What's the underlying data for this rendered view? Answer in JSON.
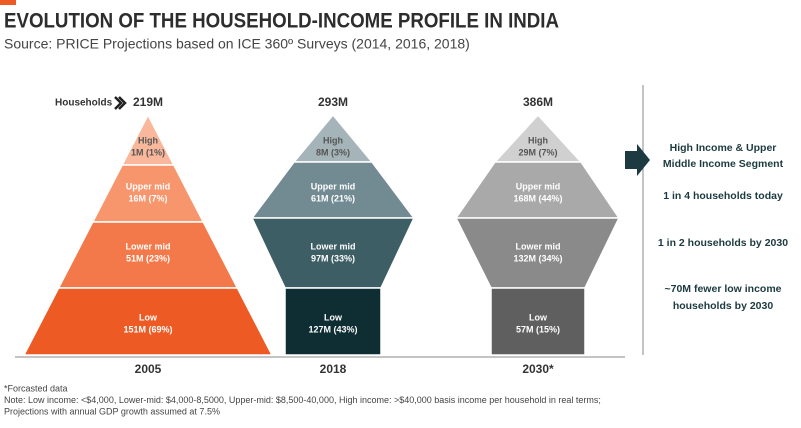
{
  "header": {
    "title": "EVOLUTION OF THE HOUSEHOLD-INCOME PROFILE IN INDIA",
    "source": "Source: PRICE Projections based on ICE 360º Surveys (2014, 2016, 2018)"
  },
  "households_label": "Households",
  "columns": [
    {
      "year": "2005",
      "total": "219M",
      "segments": [
        {
          "name": "High",
          "value": "1M (1%)"
        },
        {
          "name": "Upper mid",
          "value": "16M (7%)"
        },
        {
          "name": "Lower mid",
          "value": "51M (23%)"
        },
        {
          "name": "Low",
          "value": "151M (69%)"
        }
      ]
    },
    {
      "year": "2018",
      "total": "293M",
      "segments": [
        {
          "name": "High",
          "value": "8M (3%)"
        },
        {
          "name": "Upper mid",
          "value": "61M (21%)"
        },
        {
          "name": "Lower mid",
          "value": "97M (33%)"
        },
        {
          "name": "Low",
          "value": "127M (43%)"
        }
      ]
    },
    {
      "year": "2030*",
      "total": "386M",
      "segments": [
        {
          "name": "High",
          "value": "29M (7%)"
        },
        {
          "name": "Upper mid",
          "value": "168M (44%)"
        },
        {
          "name": "Lower mid",
          "value": "132M (34%)"
        },
        {
          "name": "Low",
          "value": "57M (15%)"
        }
      ]
    }
  ],
  "side_panel": {
    "heading": [
      "High Income & Upper",
      "Middle Income Segment"
    ],
    "facts": [
      [
        "1 in 4 households today"
      ],
      [
        "1 in 2 households by 2030"
      ],
      [
        "~70M fewer low income",
        "households by 2030"
      ]
    ]
  },
  "footnotes": [
    "*Forcasted data",
    "Note: Low income: <$4,000, Lower-mid: $4,000-8,5000, Upper-mid: $8,500-40,000, High income: >$40,000 basis income per household in real terms;",
    "Projections with annual GDP growth assumed at 7.5%"
  ]
}
